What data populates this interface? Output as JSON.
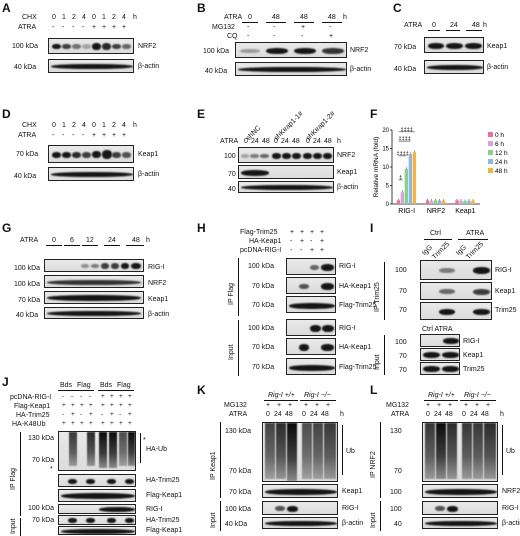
{
  "figure": {
    "panel_letters": [
      "A",
      "B",
      "C",
      "D",
      "E",
      "F",
      "G",
      "H",
      "I",
      "J",
      "K",
      "L"
    ]
  },
  "common": {
    "kda100": "100 kDa",
    "kda70": "70 kDa",
    "kda40": "40 kDa",
    "kda130": "130 kDa",
    "n100": "100",
    "n70": "70",
    "n40": "40",
    "n130": "130",
    "h": "h",
    "atra": "ATRA",
    "chx": "CHX",
    "nrf2": "NRF2",
    "keap1": "Keap1",
    "actin": "β-actin",
    "rigi": "RIG-I",
    "trim25": "Trim25",
    "ub": "Ub",
    "star": "*"
  },
  "panelA": {
    "chx": [
      "0",
      "1",
      "2",
      "4",
      "0",
      "1",
      "2",
      "4"
    ],
    "atra": [
      "-",
      "-",
      "-",
      "-",
      "+",
      "+",
      "+",
      "+"
    ]
  },
  "panelB": {
    "atra": [
      "0",
      "48",
      "48",
      "48"
    ],
    "mg132_label": "MG132",
    "mg132": [
      "-",
      "-",
      "+",
      "-"
    ],
    "cq_label": "CQ",
    "cq": [
      "-",
      "-",
      "-",
      "+"
    ]
  },
  "panelC": {
    "atra": [
      "0",
      "24",
      "48"
    ]
  },
  "panelD": {
    "chx": [
      "0",
      "1",
      "2",
      "4",
      "0",
      "1",
      "2",
      "4"
    ],
    "atra": [
      "-",
      "-",
      "-",
      "-",
      "+",
      "+",
      "+",
      "+"
    ]
  },
  "panelE": {
    "groups": [
      "shNC",
      "shKeap1-1#",
      "shKeap1-2#"
    ],
    "atra": [
      "0",
      "24",
      "48",
      "0",
      "24",
      "48",
      "0",
      "24",
      "48"
    ]
  },
  "panelG": {
    "atra": [
      "0",
      "6",
      "12",
      "24",
      "48"
    ]
  },
  "panelH": {
    "rows": [
      "Flag-Trim25",
      "HA-Keap1",
      "pcDNA-RIG-I"
    ],
    "flag": [
      "+",
      "+",
      "+",
      "+"
    ],
    "ha": [
      "-",
      "+",
      "-",
      "+"
    ],
    "pc": [
      "-",
      "-",
      "+",
      "+"
    ],
    "ip": "IP Flag",
    "input": "Input",
    "ha_keap1": "HA-Keap1",
    "flag_trim25": "Flag-Trim25"
  },
  "panelI": {
    "ctrl": "Ctrl",
    "atra": "ATRA",
    "igg": "IgG",
    "ip": "IP Trim25",
    "input": "Input",
    "ctrl_atra": "Ctrl ATRA"
  },
  "panelJ": {
    "groups": [
      "Bds",
      "Flag",
      "Bds",
      "Flag"
    ],
    "rows": [
      "pcDNA-RIG-I",
      "Flag-Keap1",
      "HA-Trim25",
      "HA-K48Ub"
    ],
    "pc": [
      "-",
      "-",
      "-",
      "-",
      "+",
      "+",
      "+",
      "+"
    ],
    "fk": [
      "+",
      "+",
      "+",
      "+",
      "+",
      "+",
      "+",
      "+"
    ],
    "ht": [
      "-",
      "+",
      "-",
      "+",
      "-",
      "+",
      "-",
      "+"
    ],
    "hk": [
      "+",
      "+",
      "+",
      "+",
      "+",
      "+",
      "+",
      "+"
    ],
    "ha_ub": "HA-Ub",
    "ha_trim25": "HA-Trim25",
    "flag_keap1": "Flag-Keap1",
    "ip": "IP Flag",
    "input": "Input"
  },
  "panelK": {
    "mg132_label": "MG132",
    "geno1": "Rig-I +/+",
    "geno2": "Rig-I −/−",
    "mg132": [
      "+",
      "+",
      "+",
      "+",
      "+",
      "+"
    ],
    "atra": [
      "0",
      "24",
      "48",
      "0",
      "24",
      "48"
    ],
    "ip": "IP Keap1",
    "input": "Input"
  },
  "panelL": {
    "mg132_label": "MG132",
    "geno1": "Rig-I +/+",
    "geno2": "Rig-I −/−",
    "mg132": [
      "+",
      "+",
      "+",
      "+",
      "+",
      "+"
    ],
    "atra": [
      "0",
      "24",
      "48",
      "0",
      "24",
      "48"
    ],
    "ip": "IP NRF2",
    "input": "Input"
  },
  "chart_data": {
    "type": "bar",
    "title": "",
    "ylabel": "Relative mRNA (fold)",
    "xlabel": "",
    "categories": [
      "RIG-I",
      "NRF2",
      "Keap1"
    ],
    "ylim": [
      0,
      20
    ],
    "yticks": [
      0,
      5,
      10,
      15,
      20
    ],
    "legend_position": "right",
    "series": [
      {
        "name": "0 h",
        "color": "#e8739a",
        "values": [
          1.0,
          1.0,
          1.0
        ]
      },
      {
        "name": "6 h",
        "color": "#d9a5d9",
        "values": [
          3.2,
          0.9,
          0.9
        ]
      },
      {
        "name": "12 h",
        "color": "#88d18c",
        "values": [
          9.5,
          1.0,
          0.8
        ]
      },
      {
        "name": "24 h",
        "color": "#8fb6e3",
        "values": [
          13.5,
          0.9,
          0.9
        ]
      },
      {
        "name": "48 h",
        "color": "#f2b447",
        "values": [
          14.0,
          0.9,
          0.9
        ]
      }
    ],
    "annotations": [
      "‡",
      "‡‡‡‡",
      "‡‡‡‡",
      "‡‡‡‡"
    ]
  }
}
